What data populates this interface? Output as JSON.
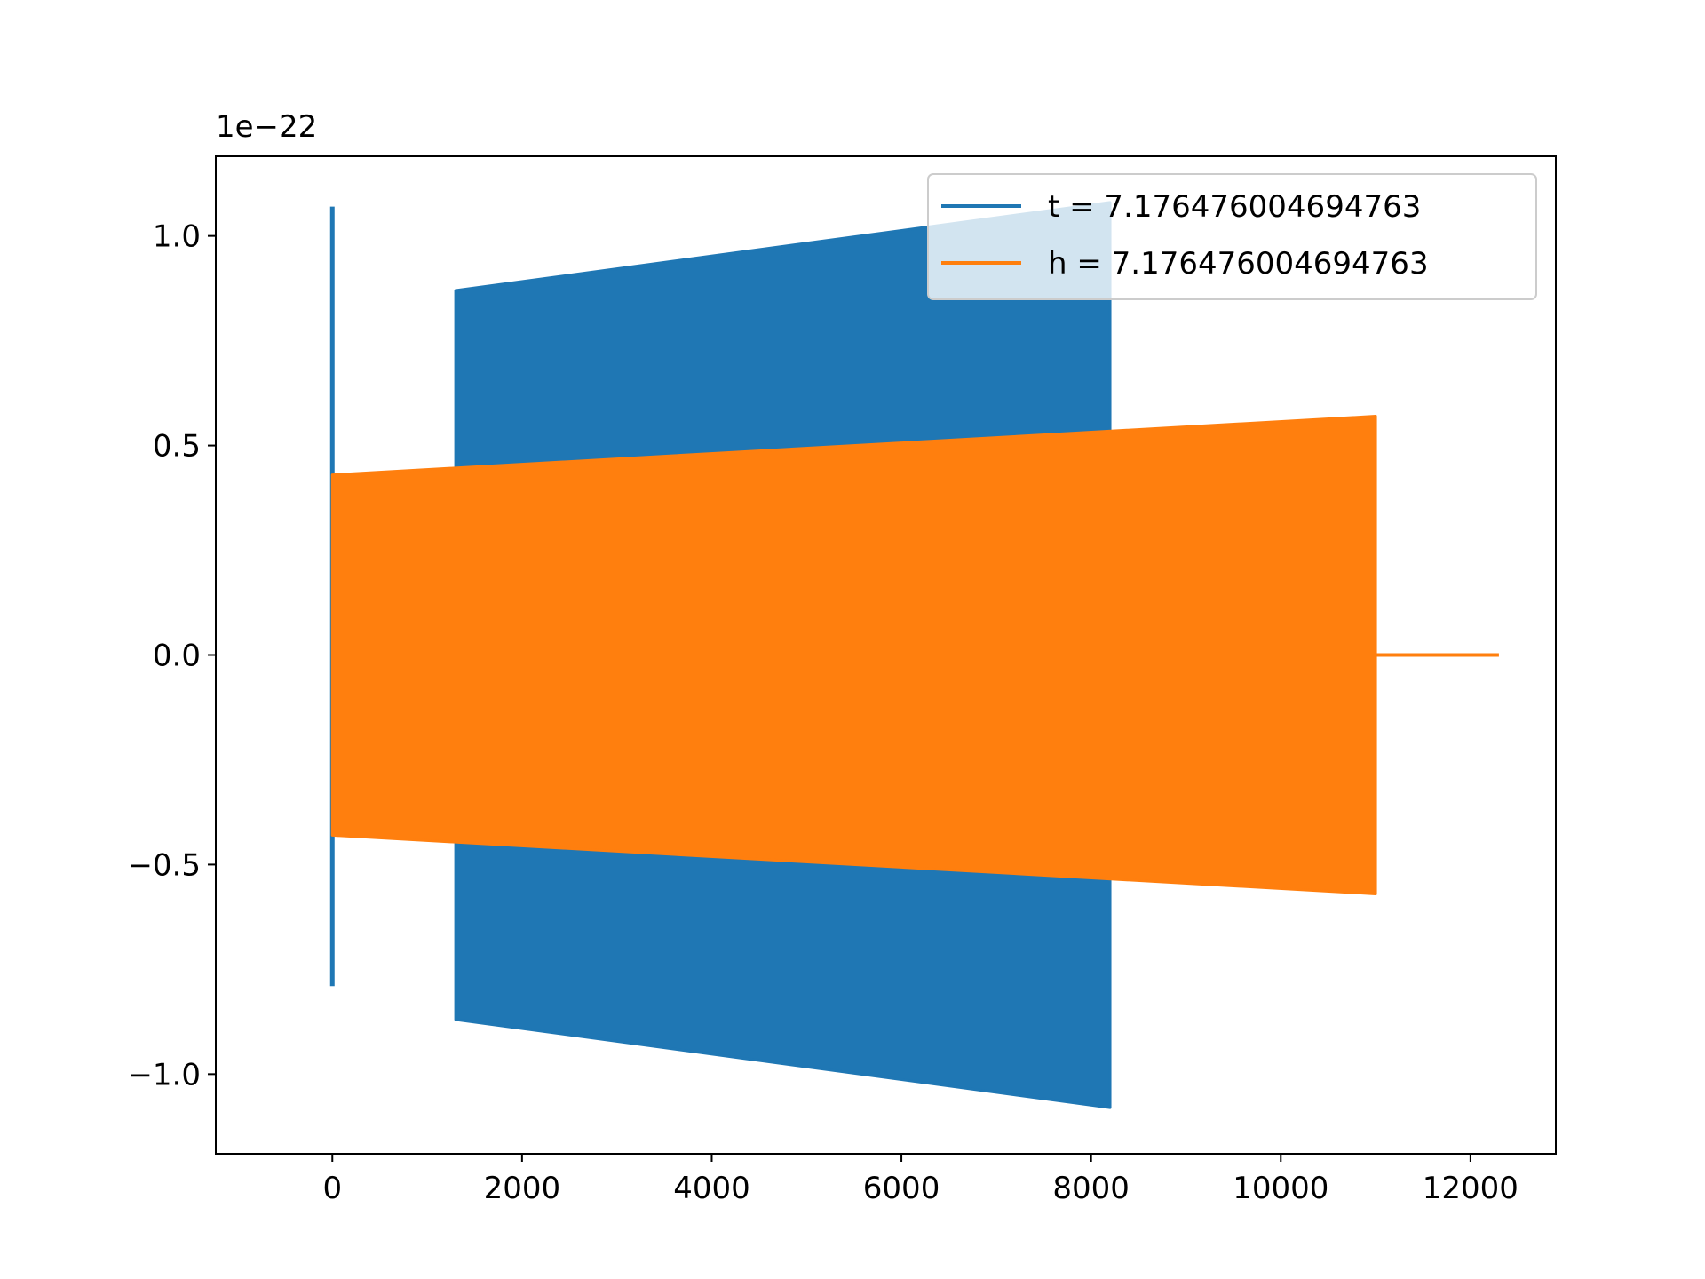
{
  "chart_data": {
    "type": "line",
    "title": "",
    "xlabel": "",
    "ylabel": "",
    "y_offset_label": "1e−22",
    "xlim": [
      -1229,
      12900
    ],
    "ylim": [
      -1.19,
      1.19
    ],
    "x_ticks": [
      0,
      2000,
      4000,
      6000,
      8000,
      10000,
      12000
    ],
    "x_tick_labels": [
      "0",
      "2000",
      "4000",
      "6000",
      "8000",
      "10000",
      "12000"
    ],
    "y_ticks": [
      -1.0,
      -0.5,
      0.0,
      0.5,
      1.0
    ],
    "y_tick_labels": [
      "−1.0",
      "−0.5",
      "0.0",
      "0.5",
      "1.0"
    ],
    "grid": false,
    "legend_position": "top-right",
    "series": [
      {
        "name": "t = 7.176476004694763",
        "color": "#1f77b4",
        "spike": {
          "x": 0,
          "max": 1.07,
          "min": -0.79
        },
        "envelope": {
          "x_start": 1300,
          "x_end": 8200,
          "upper_start": 0.87,
          "upper_end": 1.08,
          "lower_start": -0.87,
          "lower_end": -1.08
        }
      },
      {
        "name": "h = 7.176476004694763",
        "color": "#ff7f0e",
        "envelope": {
          "x_start": 0,
          "x_end": 11000,
          "upper_start": 0.43,
          "upper_end": 0.57,
          "lower_start": -0.43,
          "lower_end": -0.57
        },
        "tail": {
          "x_start": 11000,
          "x_end": 12300,
          "y": 0.0
        }
      }
    ]
  }
}
